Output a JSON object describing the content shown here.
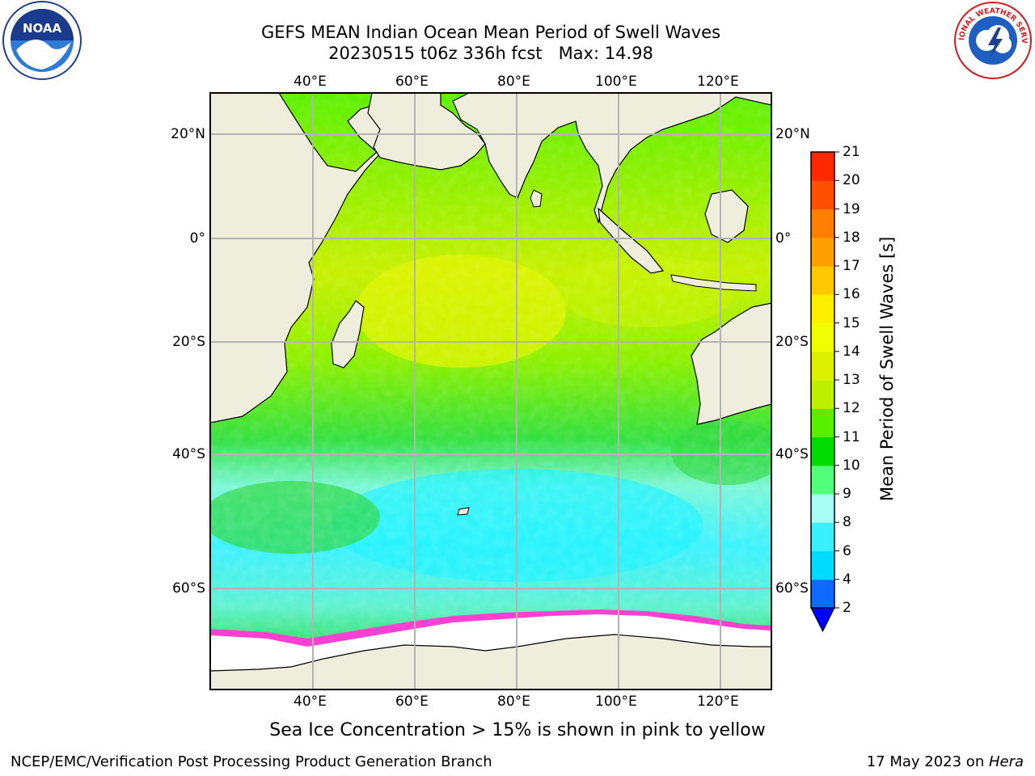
{
  "header": {
    "title_line1": "GEFS MEAN Indian Ocean Mean Period of Swell Waves",
    "title_line2": "20230515 t06z 336h fcst   Max: 14.98"
  },
  "logos": {
    "left": "noaa-logo",
    "left_text": "NOAA",
    "right": "nws-logo",
    "right_text": "NATIONAL WEATHER SERVICE"
  },
  "map": {
    "lon_labels": [
      "40°E",
      "60°E",
      "80°E",
      "100°E",
      "120°E"
    ],
    "lat_labels": [
      "20°N",
      "0°",
      "20°S",
      "40°S",
      "60°S"
    ],
    "colors": {
      "land": "#efeedc",
      "ice": "#ffffff",
      "grid": "#b3b3b3"
    }
  },
  "colorbar": {
    "label": "Mean Period of Swell Waves [s]",
    "ticks": [
      "2",
      "4",
      "6",
      "8",
      "9",
      "10",
      "11",
      "12",
      "13",
      "14",
      "15",
      "16",
      "17",
      "18",
      "19",
      "20",
      "21"
    ],
    "colors": [
      "#0f6bff",
      "#00dcff",
      "#38f0ff",
      "#a8fff4",
      "#52ff7a",
      "#00dc00",
      "#56f000",
      "#bef000",
      "#dcf000",
      "#f0ff00",
      "#fff000",
      "#ffc800",
      "#ffa000",
      "#ff8000",
      "#ff5000",
      "#ff2800"
    ],
    "extend_color": "#0000ff"
  },
  "note": "Sea Ice Concentration > 15% is shown in pink to yellow",
  "footer": {
    "left": "NCEP/EMC/Verification Post Processing Product Generation Branch",
    "right_prefix": "17 May 2023 on ",
    "right_host": "Hera"
  }
}
